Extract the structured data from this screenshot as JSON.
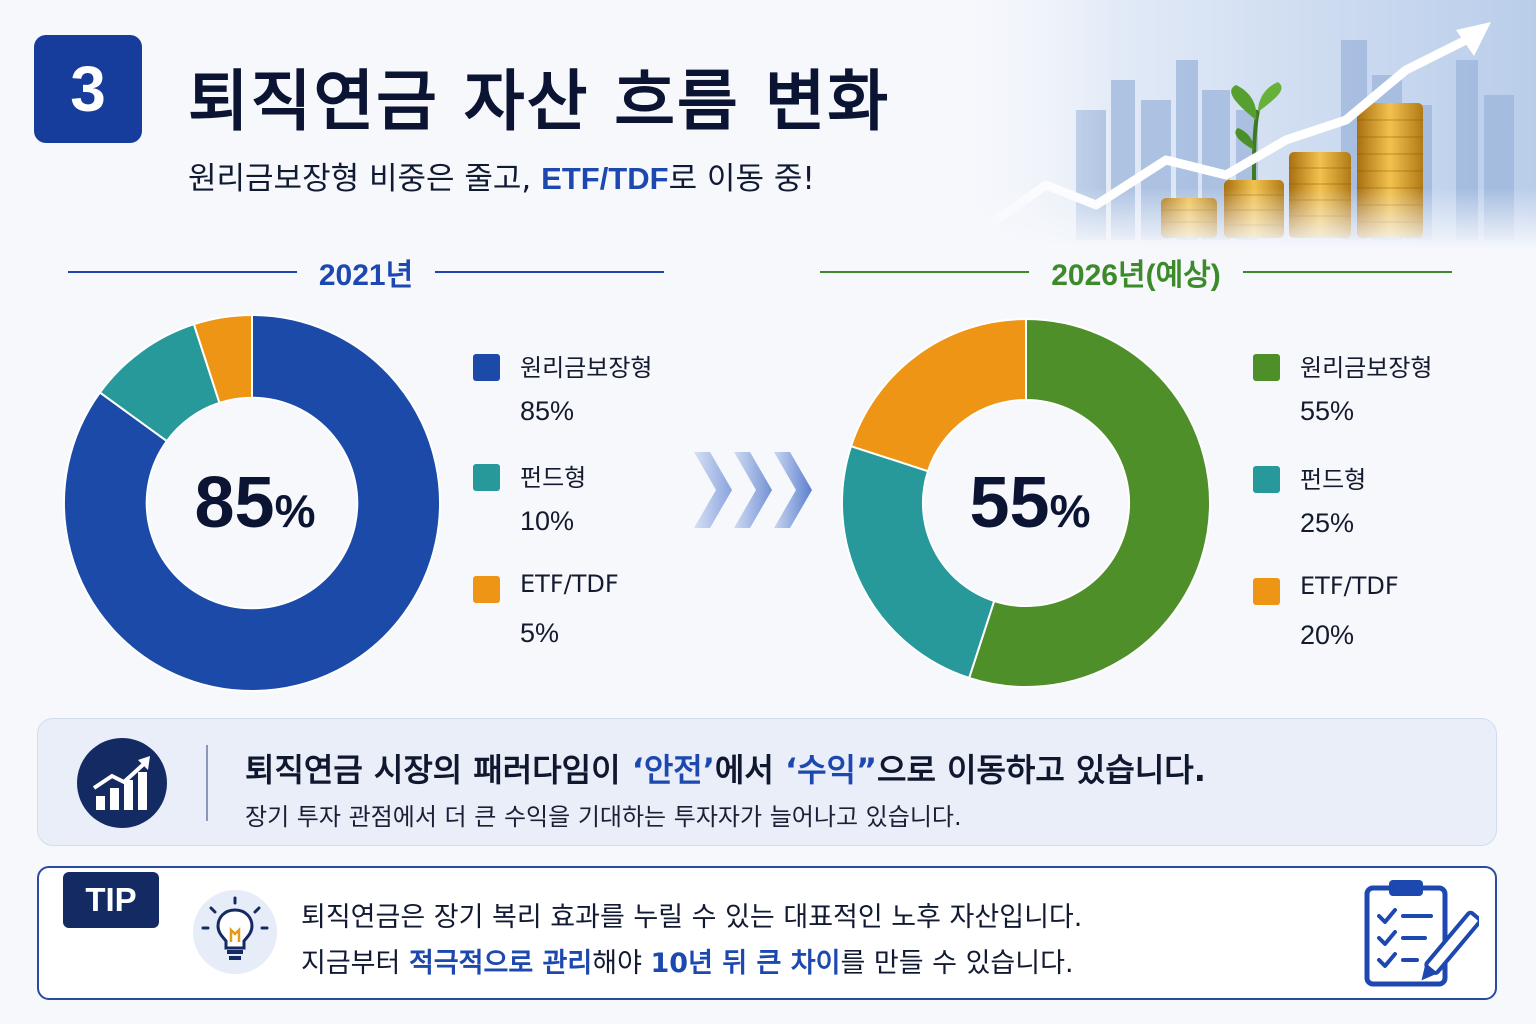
{
  "header": {
    "badge_number": "3",
    "title": "퇴직연금 자산 흐름 변화",
    "subtitle_prefix": "원리금보장형 비중은 줄고, ",
    "subtitle_highlight": "ETF/TDF",
    "subtitle_suffix": "로 이동 중!"
  },
  "colors": {
    "blue": "#1b4aa8",
    "teal": "#27999b",
    "orange": "#ee9516",
    "green": "#4e8f2a",
    "gray": "#d0d3d8"
  },
  "chart_data": [
    {
      "type": "pie",
      "title": "2021년",
      "center_label": "85",
      "center_unit": "%",
      "slices": [
        {
          "label": "원리금보장형",
          "value": 85,
          "value_label": "85%",
          "color": "#1b4aa8"
        },
        {
          "label": "펀드형",
          "value": 10,
          "value_label": "10%",
          "color": "#27999b"
        },
        {
          "label": "ETF/TDF",
          "value": 5,
          "value_label": "5%",
          "color": "#ee9516"
        }
      ]
    },
    {
      "type": "pie",
      "title": "2026년(예상)",
      "center_label": "55",
      "center_unit": "%",
      "slices": [
        {
          "label": "원리금보장형",
          "value": 55,
          "value_label": "55%",
          "color": "#4e8f2a"
        },
        {
          "label": "펀드형",
          "value": 25,
          "value_label": "25%",
          "color": "#27999b"
        },
        {
          "label": "ETF/TDF",
          "value": 20,
          "value_label": "20%",
          "color": "#ee9516"
        }
      ]
    }
  ],
  "insight": {
    "icon": "growth-chart-icon",
    "main_prefix": "퇴직연금 시장의 패러다임이 ",
    "main_hl1": "‘안전’",
    "main_mid": "에서 ",
    "main_hl2": "‘수익”",
    "main_suffix": "으로 이동하고 있습니다.",
    "sub": "장기 투자 관점에서 더 큰 수익을 기대하는 투자자가 늘어나고 있습니다."
  },
  "tip": {
    "badge": "TIP",
    "bulb_icon": "lightbulb-icon",
    "clipboard_icon": "clipboard-checklist-icon",
    "line1": "퇴직연금은 장기 복리 효과를 누릴 수 있는 대표적인 노후 자산입니다.",
    "line2_a": "지금부터 ",
    "line2_hl1": "적극적으로 관리",
    "line2_b": "해야 ",
    "line2_hl2": "10년 뒤 큰 차이",
    "line2_c": "를 만들 수 있습니다."
  }
}
